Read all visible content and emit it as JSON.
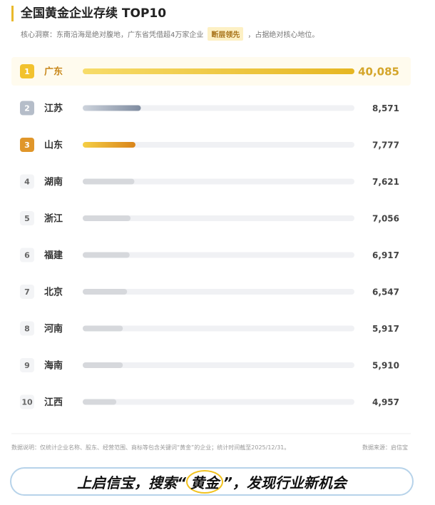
{
  "header": {
    "title": "全国黄金企业存续 TOP10",
    "insight": [
      "核心洞察：东南沿海是绝对腹地，广东省凭借超4万家企业",
      "断层领先",
      "，占据绝对核心地位。"
    ]
  },
  "chart_data": {
    "type": "bar",
    "orientation": "horizontal",
    "ranks": [
      1,
      2,
      3,
      4,
      5,
      6,
      7,
      8,
      9,
      10
    ],
    "categories": [
      "广东",
      "江苏",
      "山东",
      "湖南",
      "浙江",
      "福建",
      "北京",
      "河南",
      "海南",
      "江西"
    ],
    "values": [
      40085,
      8571,
      7777,
      7621,
      7056,
      6917,
      6547,
      5917,
      5910,
      4957
    ],
    "value_labels": [
      "40,085",
      "8,571",
      "7,777",
      "7,621",
      "7,056",
      "6,917",
      "6,547",
      "5,917",
      "5,910",
      "4,957"
    ],
    "colors": [
      "#efc93a",
      "#8e9aac",
      "#e39a22",
      "#d6d8dc",
      "#d6d8dc",
      "#d6d8dc",
      "#d6d8dc",
      "#d6d8dc",
      "#d6d8dc",
      "#d6d8dc"
    ],
    "xlim": [
      0,
      40085
    ]
  },
  "footer": {
    "note": "数据说明：仅统计企业名称、股东、经营范围、商标等包含关键词“黄金”的企业；统计时间截至2025/12/31。",
    "source": "数据来源：启信宝"
  },
  "banner": {
    "parts": [
      "上启信宝，搜索“",
      "黄金",
      "”，发现行业新机会"
    ]
  }
}
